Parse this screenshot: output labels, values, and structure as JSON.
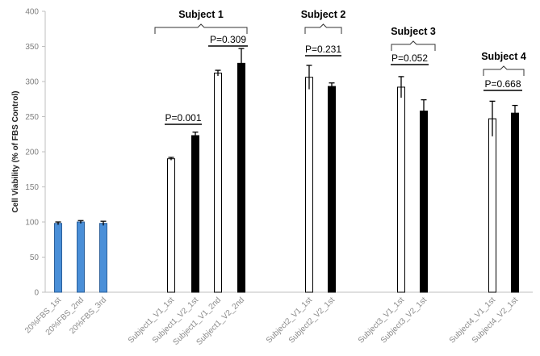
{
  "chart_data": {
    "type": "bar",
    "ylabel": "Cell Viability (% of FBS Control)",
    "ylim": [
      0,
      400
    ],
    "yticks": [
      0,
      50,
      100,
      150,
      200,
      250,
      300,
      350,
      400
    ],
    "grid": false,
    "legend": "none",
    "categories": [
      "20%FBS_1st",
      "20%FBS_2nd",
      "20%FBS_3rd",
      "Subject1_V1_1st",
      "Subject1_V2_1st",
      "Subject1_V1_2nd",
      "Subject1_V2_2nd",
      "Subject2_V1_1st",
      "Subject2_V2_1st",
      "Subject3_V1_1st",
      "Subject3_V2_1st",
      "Subject4_V1_1st",
      "Subject4_V2_1st"
    ],
    "values": [
      98,
      100,
      98,
      190,
      223,
      312,
      326,
      306,
      293,
      292,
      258,
      247,
      255
    ],
    "errors": [
      2,
      2,
      3,
      2,
      5,
      4,
      21,
      17,
      5,
      15,
      16,
      25,
      11
    ],
    "styles": [
      "blue",
      "blue",
      "blue",
      "white",
      "black",
      "white",
      "black",
      "white",
      "black",
      "white",
      "black",
      "white",
      "black"
    ],
    "colors": {
      "blue": "#4a8fd8",
      "white": "#ffffff",
      "black": "#000000"
    },
    "groups": [
      {
        "label": "Subject 1",
        "first": 3,
        "last": 6
      },
      {
        "label": "Subject 2",
        "first": 7,
        "last": 8
      },
      {
        "label": "Subject 3",
        "first": 9,
        "last": 10
      },
      {
        "label": "Subject 4",
        "first": 11,
        "last": 12
      }
    ],
    "pvalues": [
      {
        "text": "P=0.001",
        "first": 3,
        "last": 4
      },
      {
        "text": "P=0.309",
        "first": 5,
        "last": 6
      },
      {
        "text": "P=0.231",
        "first": 7,
        "last": 8
      },
      {
        "text": "P=0.052",
        "first": 9,
        "last": 10
      },
      {
        "text": "P=0.668",
        "first": 11,
        "last": 12
      }
    ]
  }
}
